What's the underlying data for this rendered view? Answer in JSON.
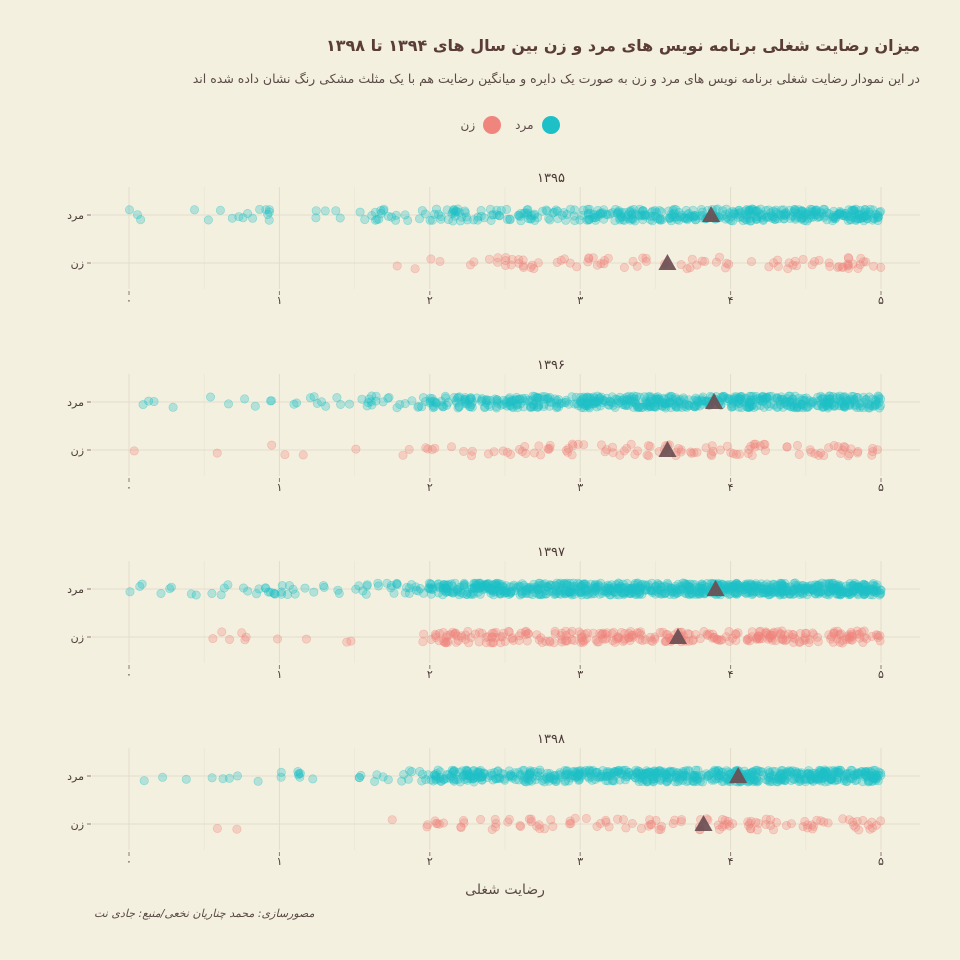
{
  "chart_data": {
    "type": "scatter",
    "title": "میزان رضایت شغلی برنامه نویس های مرد و زن بین سال های ۱۳۹۴ تا ۱۳۹۸",
    "subtitle": "در این نمودار رضایت شغلی برنامه نویس های مرد و زن به صورت یک دایره و میانگین رضایت هم با یک مثلث مشکی رنگ نشان داده شده اند",
    "xlabel": "رضایت شغلی",
    "caption": "مصورسازی: محمد چناریان نخعی/منبع: جادی نت",
    "xlim": [
      0,
      5
    ],
    "x_ticks": [
      0,
      1,
      2,
      3,
      4,
      5
    ],
    "x_tick_labels": [
      "۰",
      "۱",
      "۲",
      "۳",
      "۴",
      "۵"
    ],
    "categories": [
      "مرد",
      "زن"
    ],
    "legend": {
      "placement": "top-center",
      "items": [
        {
          "label": "مرد",
          "color": "#1ec0c8"
        },
        {
          "label": "زن",
          "color": "#f0857d"
        }
      ]
    },
    "grid": true,
    "colors": {
      "male": "#1ec0c8",
      "female": "#f0857d",
      "mean_marker": "#6b4e52"
    },
    "panels": [
      {
        "year": "۱۳۹۵",
        "series": [
          {
            "name": "مرد",
            "density": [
              0.35,
              0.45,
              0.6,
              2.5,
              4.5,
              5.5
            ],
            "mean": 3.87
          },
          {
            "name": "زن",
            "density": [
              0.0,
              0.12,
              0.15,
              0.7,
              0.9,
              1.0
            ],
            "mean": 3.58
          }
        ]
      },
      {
        "year": "۱۳۹۶",
        "series": [
          {
            "name": "مرد",
            "density": [
              0.45,
              0.55,
              0.85,
              5.0,
              6.5,
              7.0
            ],
            "mean": 3.89
          },
          {
            "name": "زن",
            "density": [
              0.02,
              0.1,
              0.25,
              1.0,
              1.1,
              1.3
            ],
            "mean": 3.58
          }
        ]
      },
      {
        "year": "۱۳۹۷",
        "series": [
          {
            "name": "مرد",
            "density": [
              0.6,
              0.9,
              1.4,
              8.0,
              9.5,
              10.0
            ],
            "mean": 3.9
          },
          {
            "name": "زن",
            "density": [
              0.08,
              0.2,
              0.3,
              2.3,
              3.2,
              3.5
            ],
            "mean": 3.65
          }
        ]
      },
      {
        "year": "۱۳۹۸",
        "series": [
          {
            "name": "مرد",
            "density": [
              0.12,
              0.4,
              0.8,
              5.0,
              7.0,
              8.0
            ],
            "mean": 4.05
          },
          {
            "name": "زن",
            "density": [
              0.0,
              0.08,
              0.2,
              0.9,
              1.2,
              1.3
            ],
            "mean": 3.82
          }
        ]
      }
    ]
  }
}
